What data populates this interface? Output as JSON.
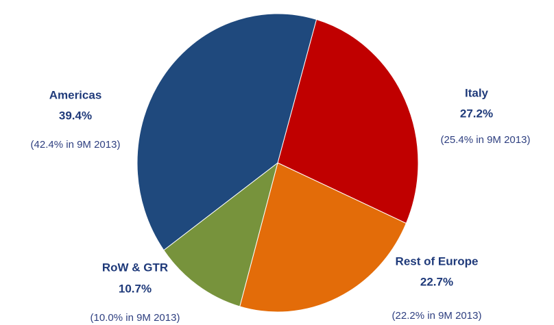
{
  "chart_data": {
    "type": "pie",
    "categories": [
      "Italy",
      "Rest of Europe",
      "RoW & GTR",
      "Americas"
    ],
    "values": [
      27.2,
      22.7,
      10.7,
      39.4
    ],
    "value_labels": [
      "27.2%",
      "22.7%",
      "10.7%",
      "39.4%"
    ],
    "notes": [
      "(25.4% in 9M 2013)",
      "(22.2% in 9M 2013)",
      "(10.0% in 9M 2013)",
      "(42.4% in 9M 2013)"
    ],
    "colors": [
      "#c00000",
      "#e36c09",
      "#77933c",
      "#1f497d"
    ]
  }
}
